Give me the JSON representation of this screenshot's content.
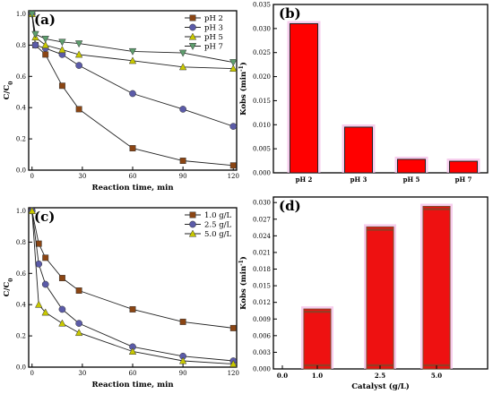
{
  "chart_data": [
    {
      "panel": "(a)",
      "type": "line",
      "xlabel": "Reaction time, min",
      "ylabel": "C/C",
      "ylabel_sub": "0",
      "xlim": [
        -2,
        122
      ],
      "ylim": [
        0,
        1.02
      ],
      "xticks": [
        0,
        30,
        60,
        90,
        120
      ],
      "yticks": [
        0.0,
        0.2,
        0.4,
        0.6,
        0.8,
        1.0
      ],
      "legend_position": "top-right",
      "series": [
        {
          "name": "pH 2",
          "color": "#8B4513",
          "marker": "square",
          "x": [
            0,
            2,
            8,
            18,
            28,
            60,
            90,
            120
          ],
          "y": [
            1.0,
            0.8,
            0.74,
            0.54,
            0.39,
            0.14,
            0.06,
            0.03
          ]
        },
        {
          "name": "pH 3",
          "color": "#5B5BA8",
          "marker": "circle",
          "x": [
            0,
            2,
            8,
            18,
            28,
            60,
            90,
            120
          ],
          "y": [
            1.0,
            0.8,
            0.78,
            0.74,
            0.67,
            0.49,
            0.39,
            0.28
          ]
        },
        {
          "name": "pH 5",
          "color": "#C8C800",
          "marker": "triangle-up",
          "x": [
            0,
            2,
            8,
            18,
            28,
            60,
            90,
            120
          ],
          "y": [
            1.0,
            0.85,
            0.8,
            0.77,
            0.74,
            0.7,
            0.66,
            0.65
          ]
        },
        {
          "name": "pH 7",
          "color": "#5E9E6E",
          "marker": "triangle-down",
          "x": [
            0,
            2,
            8,
            18,
            28,
            60,
            90,
            120
          ],
          "y": [
            1.0,
            0.87,
            0.84,
            0.82,
            0.81,
            0.76,
            0.75,
            0.69
          ]
        }
      ]
    },
    {
      "panel": "(b)",
      "type": "bar",
      "ylabel": "Kobs (min",
      "ylabel_sup": "-1",
      "ylabel_end": ")",
      "categories": [
        "pH 2",
        "pH 3",
        "pH 5",
        "pH 7"
      ],
      "values": [
        0.031,
        0.0095,
        0.0028,
        0.0024
      ],
      "ylim": [
        0,
        0.035
      ],
      "yticks": [
        "0.000",
        "0.005",
        "0.010",
        "0.015",
        "0.020",
        "0.025",
        "0.030",
        "0.035"
      ],
      "bar_color": "#FF0000"
    },
    {
      "panel": "(c)",
      "type": "line",
      "xlabel": "Reaction time, min",
      "ylabel": "C/C",
      "ylabel_sub": "0",
      "xlim": [
        -2,
        122
      ],
      "ylim": [
        0,
        1.02
      ],
      "xticks": [
        0,
        30,
        60,
        90,
        120
      ],
      "yticks": [
        0.0,
        0.2,
        0.4,
        0.6,
        0.8,
        1.0
      ],
      "legend_position": "top-right",
      "series": [
        {
          "name": "1.0 g/L",
          "color": "#8B4513",
          "marker": "square",
          "x": [
            0,
            4,
            8,
            18,
            28,
            60,
            90,
            120
          ],
          "y": [
            1.0,
            0.79,
            0.7,
            0.57,
            0.49,
            0.37,
            0.29,
            0.25
          ]
        },
        {
          "name": "2.5 g/L",
          "color": "#5B5BA8",
          "marker": "circle",
          "x": [
            0,
            4,
            8,
            18,
            28,
            60,
            90,
            120
          ],
          "y": [
            1.0,
            0.66,
            0.53,
            0.37,
            0.28,
            0.13,
            0.07,
            0.04
          ]
        },
        {
          "name": "5.0 g/L",
          "color": "#C8C800",
          "marker": "triangle-up",
          "x": [
            0,
            4,
            8,
            18,
            28,
            60,
            90,
            120
          ],
          "y": [
            1.0,
            0.4,
            0.35,
            0.28,
            0.22,
            0.1,
            0.04,
            0.02
          ]
        }
      ]
    },
    {
      "panel": "(d)",
      "type": "bar",
      "xlabel": "Catalyst (g/L)",
      "ylabel": "Kobs (min",
      "ylabel_sup": "-1",
      "ylabel_end": ")",
      "categories": [
        "1.0",
        "2.5",
        "5.0"
      ],
      "category_positions": [
        1.0,
        2.5,
        5.0
      ],
      "tick_labels": [
        "0.0",
        "1.0",
        "2.5",
        "5.0"
      ],
      "values": [
        0.0108,
        0.0256,
        0.0293
      ],
      "ylim": [
        0,
        0.031
      ],
      "yticks": [
        "0.000",
        "0.003",
        "0.006",
        "0.009",
        "0.012",
        "0.015",
        "0.018",
        "0.021",
        "0.024",
        "0.027",
        "0.030"
      ],
      "bar_color": "#EE1111",
      "bar_edge_color": "#7A4A2A"
    }
  ]
}
